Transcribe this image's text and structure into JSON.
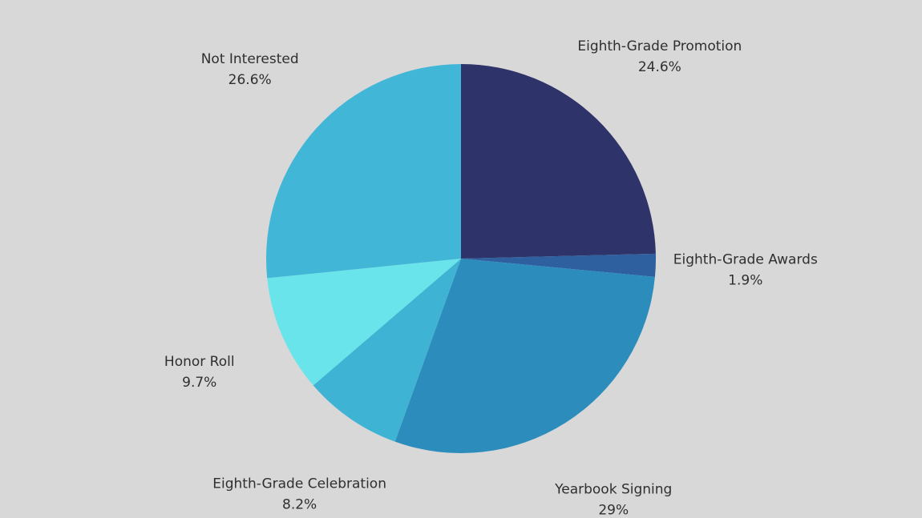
{
  "background_color": "#d8d8d8",
  "chart_data": {
    "type": "pie",
    "slices": [
      {
        "label": "Eighth-Grade Promotion",
        "value": 24.6,
        "value_label": "24.6%",
        "color": "#2e3369"
      },
      {
        "label": "Eighth-Grade Awards",
        "value": 1.9,
        "value_label": "1.9%",
        "color": "#2e5f9e"
      },
      {
        "label": "Yearbook Signing",
        "value": 29,
        "value_label": "29%",
        "color": "#2c8cbc"
      },
      {
        "label": "Eighth-Grade Celebration",
        "value": 8.2,
        "value_label": "8.2%",
        "color": "#3fb3d4"
      },
      {
        "label": "Honor Roll",
        "value": 9.7,
        "value_label": "9.7%",
        "color": "#6ae4eb"
      },
      {
        "label": "Not Interested",
        "value": 26.6,
        "value_label": "26.6%",
        "color": "#41b6d7"
      }
    ],
    "start_angle": "12 o'clock",
    "direction": "clockwise",
    "labels": "outside"
  }
}
